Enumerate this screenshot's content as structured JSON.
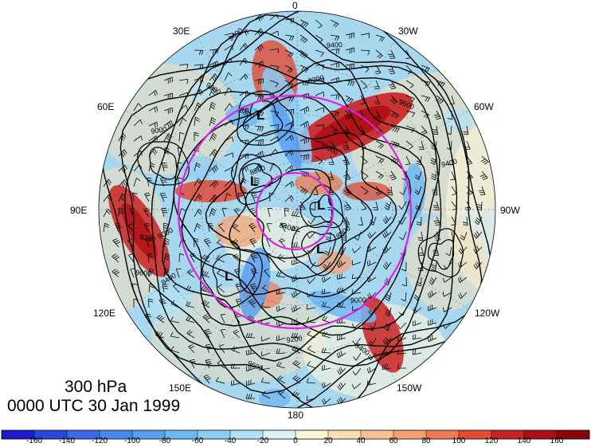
{
  "map": {
    "level": "300 hPa",
    "time": "0000 UTC 30 Jan 1999",
    "longitude_labels": {
      "top": "0",
      "upper_left": "30E",
      "upper_right": "30W",
      "left_upper": "60E",
      "right_upper": "60W",
      "left": "90E",
      "right": "90W",
      "left_lower": "120E",
      "right_lower": "120W",
      "lower_left": "150E",
      "lower_right": "150W",
      "bottom": "180"
    },
    "contour_labels": [
      "9400",
      "9400",
      "9200",
      "9000",
      "8800",
      "9200",
      "9600",
      "8800",
      "8400",
      "9000",
      "9200",
      "9400",
      "9600",
      "8800",
      "9000",
      "9400",
      "9200",
      "9600",
      "9400",
      "9600"
    ],
    "low_centers": [
      "L",
      "L",
      "L",
      "L",
      "L"
    ],
    "colors": {
      "circle_lines": "#e020e0",
      "contours": "#000000"
    }
  },
  "colorbar": {
    "labels": [
      "-160",
      "-140",
      "-120",
      "-100",
      "-80",
      "-60",
      "-40",
      "-20",
      "0",
      "20",
      "40",
      "60",
      "80",
      "100",
      "120",
      "140",
      "160"
    ],
    "colors": [
      "#1c1ccc",
      "#2848dc",
      "#3a6ae6",
      "#4a86ec",
      "#5aa0f0",
      "#6eb8f4",
      "#8ccdf6",
      "#b2e2f8",
      "#dcf2fa",
      "#fdf6d8",
      "#fbe0b4",
      "#f8c294",
      "#f4a072",
      "#ee7a52",
      "#e24a36",
      "#c92222",
      "#ac0f14",
      "#8a0508"
    ]
  }
}
